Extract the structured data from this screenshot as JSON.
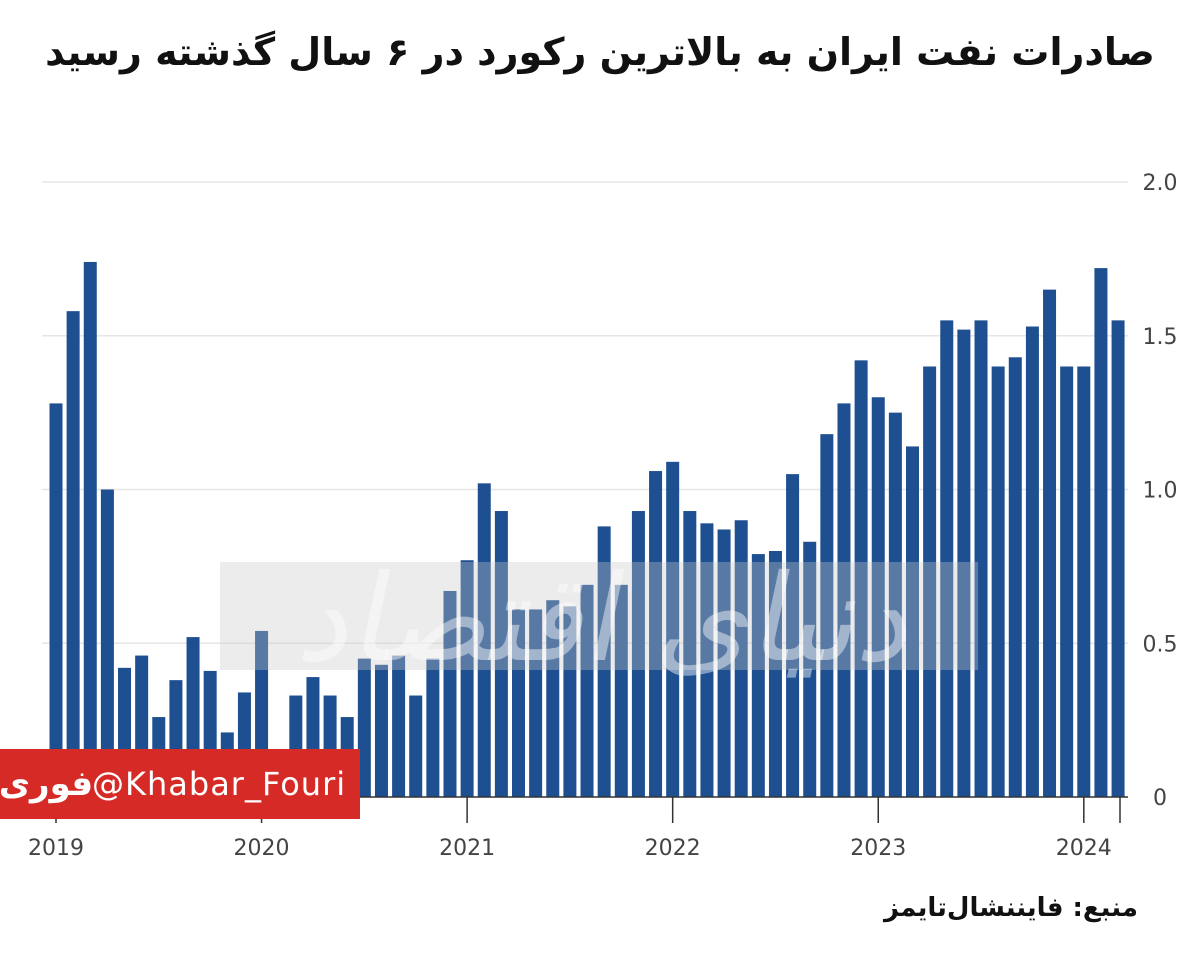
{
  "title": "صادرات نفت ایران به بالاترین رکورد در ۶ سال گذشته رسید",
  "source": "منبع: فایننشال‌تایمز",
  "watermark": {
    "banner_handle": "@Khabar_Fouri",
    "banner_logo": "فوری",
    "logo_text": "دنیای اقتصاد"
  },
  "colors": {
    "bar": "#1d4f91",
    "grid": "#e6e6e6",
    "banner": "#d62a26"
  },
  "chart_data": {
    "type": "bar",
    "title": "صادرات نفت ایران به بالاترین رکورد در ۶ سال گذشته رسید",
    "xlabel": "",
    "ylabel": "",
    "ylim": [
      0,
      2.0
    ],
    "y_axis_side": "right",
    "y_ticks": [
      "0",
      "0.5",
      "1.0",
      "1.5",
      "2.0"
    ],
    "x_ticks": [
      "2019",
      "2020",
      "2021",
      "2022",
      "2023",
      "2024"
    ],
    "grid": true,
    "categories": [
      "2019-01",
      "2019-02",
      "2019-03",
      "2019-04",
      "2019-05",
      "2019-06",
      "2019-07",
      "2019-08",
      "2019-09",
      "2019-10",
      "2019-11",
      "2019-12",
      "2020-01",
      "2020-02",
      "2020-03",
      "2020-04",
      "2020-05",
      "2020-06",
      "2020-07",
      "2020-08",
      "2020-09",
      "2020-10",
      "2020-11",
      "2020-12",
      "2021-01",
      "2021-02",
      "2021-03",
      "2021-04",
      "2021-05",
      "2021-06",
      "2021-07",
      "2021-08",
      "2021-09",
      "2021-10",
      "2021-11",
      "2021-12",
      "2022-01",
      "2022-02",
      "2022-03",
      "2022-04",
      "2022-05",
      "2022-06",
      "2022-07",
      "2022-08",
      "2022-09",
      "2022-10",
      "2022-11",
      "2022-12",
      "2023-01",
      "2023-02",
      "2023-03",
      "2023-04",
      "2023-05",
      "2023-06",
      "2023-07",
      "2023-08",
      "2023-09",
      "2023-10",
      "2023-11",
      "2023-12",
      "2024-01",
      "2024-02",
      "2024-03"
    ],
    "values": [
      1.28,
      1.58,
      1.74,
      1.0,
      0.42,
      0.46,
      0.26,
      0.38,
      0.52,
      0.41,
      0.21,
      0.34,
      0.54,
      0.14,
      0.33,
      0.39,
      0.33,
      0.26,
      0.45,
      0.43,
      0.46,
      0.33,
      0.45,
      0.67,
      0.77,
      1.02,
      0.93,
      0.61,
      0.61,
      0.64,
      0.62,
      0.69,
      0.88,
      0.69,
      0.93,
      1.06,
      1.09,
      0.93,
      0.89,
      0.87,
      0.9,
      0.79,
      0.8,
      1.05,
      0.83,
      1.18,
      1.28,
      1.42,
      1.3,
      1.25,
      1.14,
      1.4,
      1.55,
      1.52,
      1.55,
      1.4,
      1.43,
      1.53,
      1.65,
      1.4,
      1.4,
      1.72,
      1.55
    ]
  }
}
